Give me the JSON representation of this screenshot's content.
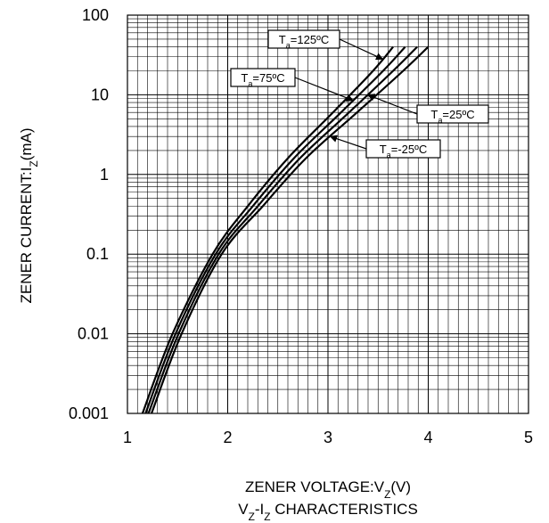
{
  "chart_data": {
    "type": "line",
    "title": "",
    "subtitle": "VZ-IZ CHARACTERISTICS",
    "subtitle_parts": [
      {
        "t": "V",
        "sub": false
      },
      {
        "t": "Z",
        "sub": true
      },
      {
        "t": "-I",
        "sub": false
      },
      {
        "t": "Z",
        "sub": true
      },
      {
        "t": " CHARACTERISTICS",
        "sub": false
      }
    ],
    "xlabel": "ZENER VOLTAGE:VZ(V)",
    "xlabel_parts": [
      {
        "t": "ZENER VOLTAGE:V",
        "sub": false
      },
      {
        "t": "Z",
        "sub": true
      },
      {
        "t": "(V)",
        "sub": false
      }
    ],
    "ylabel": "ZENER CURRENT:IZ(mA)",
    "ylabel_parts": [
      {
        "t": "ZENER CURRENT:I",
        "sub": false
      },
      {
        "t": "Z",
        "sub": true
      },
      {
        "t": "(mA)",
        "sub": false
      }
    ],
    "x_ticks": [
      "1",
      "2",
      "3",
      "4",
      "5"
    ],
    "y_ticks": [
      "100",
      "10",
      "1",
      "0.1",
      "0.01",
      "0.001"
    ],
    "xlim": [
      1,
      5
    ],
    "ylim": [
      0.001,
      100
    ],
    "y_scale": "log",
    "grid": true,
    "series": [
      {
        "name": "Ta=125ºC",
        "x": [
          1.15,
          1.45,
          1.85,
          2.2,
          2.6,
          3.05,
          3.45,
          3.65
        ],
        "y": [
          0.001,
          0.01,
          0.1,
          0.4,
          1.6,
          6,
          20,
          40
        ]
      },
      {
        "name": "Ta=75ºC",
        "x": [
          1.18,
          1.48,
          1.88,
          2.25,
          2.66,
          3.13,
          3.55,
          3.77
        ],
        "y": [
          0.001,
          0.01,
          0.1,
          0.4,
          1.6,
          6,
          20,
          40
        ]
      },
      {
        "name": "Ta=25ºC",
        "x": [
          1.21,
          1.51,
          1.91,
          2.3,
          2.72,
          3.21,
          3.65,
          3.89
        ],
        "y": [
          0.001,
          0.01,
          0.1,
          0.4,
          1.6,
          6,
          20,
          40
        ]
      },
      {
        "name": "Ta=-25ºC",
        "x": [
          1.24,
          1.54,
          1.94,
          2.35,
          2.78,
          3.29,
          3.75,
          4.0
        ],
        "y": [
          0.001,
          0.01,
          0.1,
          0.4,
          1.6,
          6,
          20,
          40
        ]
      }
    ],
    "annotations": [
      {
        "label": "Ta=125ºC",
        "parts": [
          {
            "t": "T",
            "sub": false
          },
          {
            "t": "a",
            "sub": true
          },
          {
            "t": "=125ºC",
            "sub": false
          }
        ],
        "series": 0
      },
      {
        "label": "Ta=75ºC",
        "parts": [
          {
            "t": "T",
            "sub": false
          },
          {
            "t": "a",
            "sub": true
          },
          {
            "t": "=75ºC",
            "sub": false
          }
        ],
        "series": 1
      },
      {
        "label": "Ta=25ºC",
        "parts": [
          {
            "t": "T",
            "sub": false
          },
          {
            "t": "a",
            "sub": true
          },
          {
            "t": "=25ºC",
            "sub": false
          }
        ],
        "series": 2
      },
      {
        "label": "Ta=-25ºC",
        "parts": [
          {
            "t": "T",
            "sub": false
          },
          {
            "t": "a",
            "sub": true
          },
          {
            "t": "=-25ºC",
            "sub": false
          }
        ],
        "series": 3
      }
    ],
    "colors": {
      "line": "#000000",
      "grid": "#000000",
      "background": "#ffffff"
    }
  }
}
